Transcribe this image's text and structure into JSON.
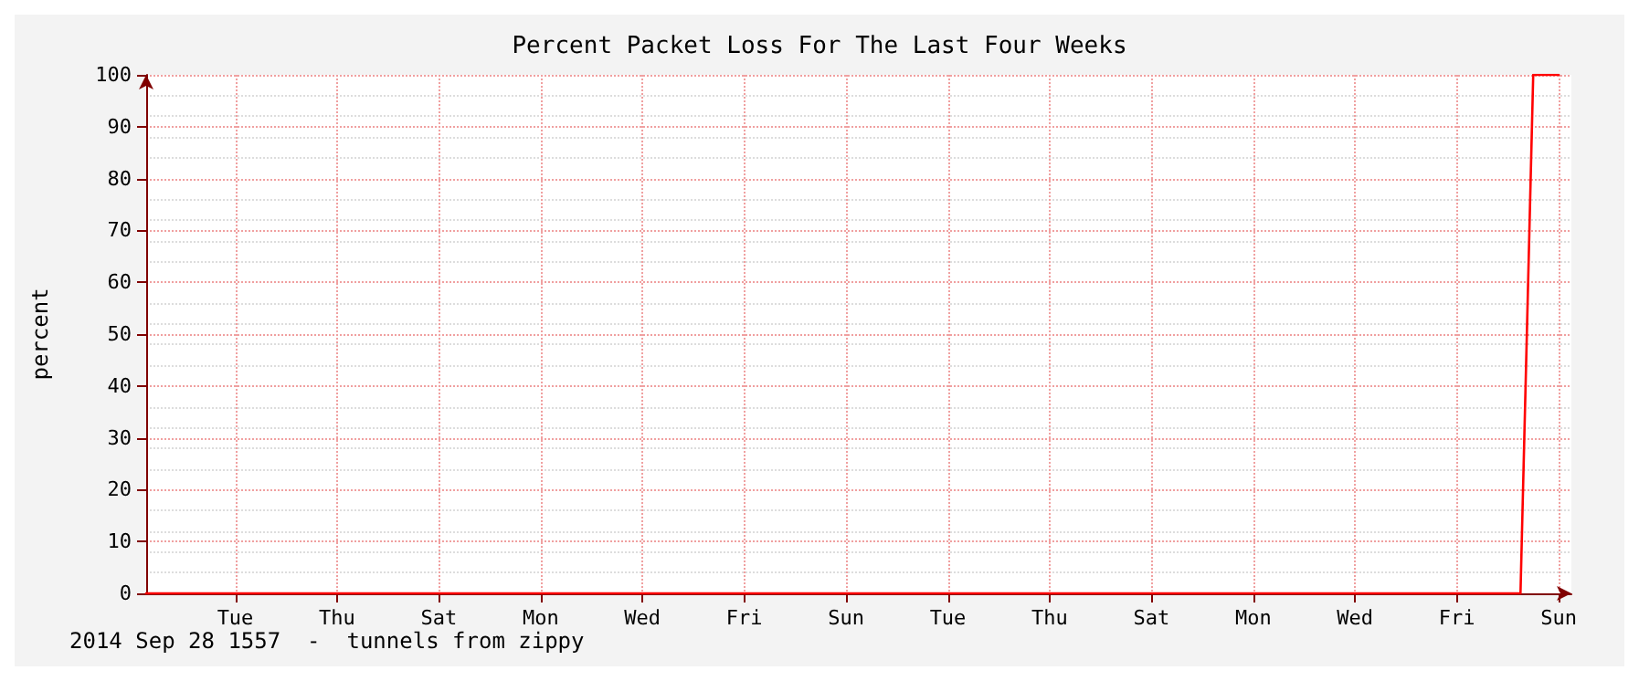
{
  "chart_data": {
    "type": "line",
    "title": "Percent Packet Loss For The Last Four Weeks",
    "ylabel": "percent",
    "annotations": [
      "2014 Sep 28 1557  -  tunnels from zippy"
    ],
    "categories": [
      null,
      null,
      null,
      null,
      null,
      null,
      null,
      "Tue",
      null,
      null,
      null,
      null,
      null,
      null,
      null,
      "Thu",
      null,
      null,
      null,
      null,
      null,
      null,
      null,
      "Sat",
      null,
      null,
      null,
      null,
      null,
      null,
      null,
      "Mon",
      null,
      null,
      null,
      null,
      null,
      null,
      null,
      "Wed",
      null,
      null,
      null,
      null,
      null,
      null,
      null,
      "Fri",
      null,
      null,
      null,
      null,
      null,
      null,
      null,
      "Sun",
      null,
      null,
      null,
      null,
      null,
      null,
      null,
      "Tue",
      null,
      null,
      null,
      null,
      null,
      null,
      null,
      "Thu",
      null,
      null,
      null,
      null,
      null,
      null,
      null,
      "Sat",
      null,
      null,
      null,
      null,
      null,
      null,
      null,
      "Mon",
      null,
      null,
      null,
      null,
      null,
      null,
      null,
      "Wed",
      null,
      null,
      null,
      null,
      null,
      null,
      null,
      "Fri",
      null,
      null,
      null,
      null,
      null,
      null,
      null,
      "Sun",
      null
    ],
    "series": [
      {
        "color": "#ff0000",
        "values": [
          0,
          0,
          0,
          0,
          0,
          0,
          0,
          0,
          0,
          0,
          0,
          0,
          0,
          0,
          0,
          0,
          0,
          0,
          0,
          0,
          0,
          0,
          0,
          0,
          0,
          0,
          0,
          0,
          0,
          0,
          0,
          0,
          0,
          0,
          0,
          0,
          0,
          0,
          0,
          0,
          0,
          0,
          0,
          0,
          0,
          0,
          0,
          0,
          0,
          0,
          0,
          0,
          0,
          0,
          0,
          0,
          0,
          0,
          0,
          0,
          0,
          0,
          0,
          0,
          0,
          0,
          0,
          0,
          0,
          0,
          0,
          0,
          0,
          0,
          0,
          0,
          0,
          0,
          0,
          0,
          0,
          0,
          0,
          0,
          0,
          0,
          0,
          0,
          0,
          0,
          0,
          0,
          0,
          0,
          0,
          0,
          0,
          0,
          0,
          0,
          0,
          0,
          0,
          0,
          0,
          0,
          0,
          0,
          0,
          100,
          100,
          100,
          null
        ]
      }
    ],
    "ylim": [
      0,
      100
    ],
    "yticks": [
      0,
      10,
      20,
      30,
      40,
      50,
      60,
      70,
      80,
      90,
      100
    ],
    "grid": true,
    "marker": "none",
    "line_style": "solid"
  }
}
